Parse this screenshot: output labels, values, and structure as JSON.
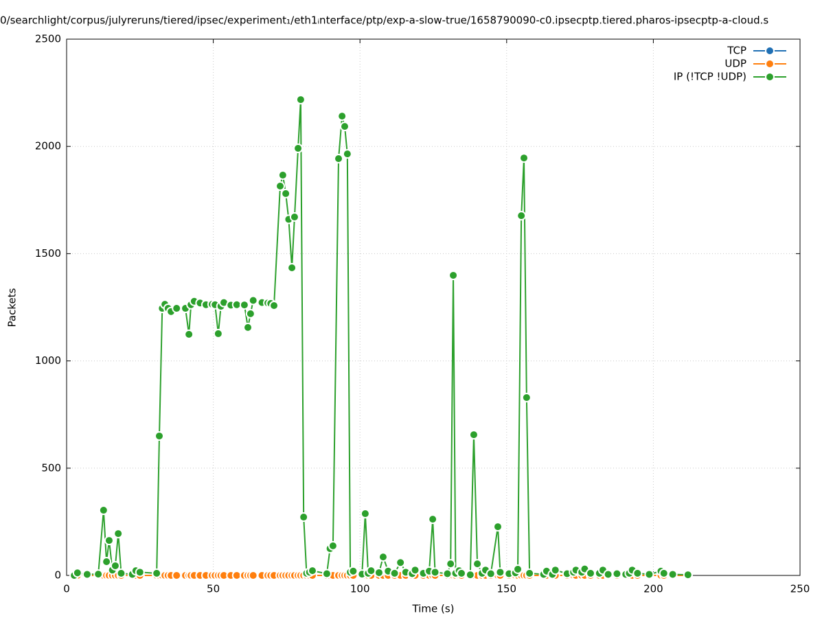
{
  "chart_data": {
    "type": "line",
    "title": "0/searchlight/corpus/julyreruns/tiered/ipsec/experiment₁/eth1ᵢnterface/ptp/exp-a-slow-true/1658790090-c0.ipsecptp.tiered.pharos-ipsecptp-a-cloud.s",
    "x_label": "Time (s)",
    "y_label": "Packets",
    "xlim": [
      0,
      250
    ],
    "xticks": [
      0,
      50,
      100,
      150,
      200,
      250
    ],
    "ylim": [
      0,
      2500
    ],
    "yticks": [
      0,
      500,
      1000,
      1500,
      2000,
      2500
    ],
    "grid": true,
    "legend": "top-right",
    "x": [
      2.6,
      3.7,
      7,
      10.8,
      12.6,
      13.6,
      14.5,
      15.6,
      16.6,
      17.6,
      18.6,
      22.4,
      23.6,
      25,
      30.7,
      31.6,
      32.6,
      33.5,
      34.6,
      35.6,
      37.5,
      40.5,
      41.7,
      42.4,
      43.5,
      45.5,
      47.5,
      49.6,
      50.6,
      51.7,
      52.6,
      53.6,
      56,
      58,
      60.6,
      61.8,
      62.7,
      63.6,
      66.6,
      68.6,
      69.6,
      70.7,
      72.8,
      73.7,
      74.7,
      75.7,
      76.8,
      77.7,
      78.9,
      79.8,
      80.8,
      81.8,
      82.8,
      83.8,
      88.7,
      89.8,
      90.8,
      92.7,
      93.9,
      94.8,
      95.7,
      96.7,
      97.7,
      100.7,
      101.8,
      102.8,
      103.8,
      106.5,
      107.9,
      109.6,
      111.8,
      113.8,
      115.6,
      117.8,
      118.8,
      121.6,
      123.6,
      124.8,
      125.6,
      129.8,
      130.9,
      131.8,
      132.6,
      133.8,
      134.6,
      137.6,
      138.8,
      140,
      141.6,
      142.8,
      144.6,
      147,
      147.8,
      150.8,
      153,
      153.8,
      155,
      155.9,
      156.8,
      157.8,
      162.6,
      163.6,
      165.6,
      166.6,
      170.6,
      172.8,
      173.6,
      175.6,
      176.6,
      178.6,
      181.6,
      182.8,
      184.6,
      187.6,
      190.6,
      191.8,
      192.8,
      194.6,
      198.6,
      202.6,
      203.6,
      206.6,
      211.8
    ],
    "series": [
      {
        "name": "TCP",
        "color": "#1f6fb4",
        "values": [
          0,
          0,
          0,
          0,
          0,
          0,
          0,
          0,
          0,
          0,
          0,
          0,
          0,
          0,
          0,
          0,
          0,
          0,
          0,
          0,
          0,
          0,
          0,
          0,
          0,
          0,
          0,
          0,
          0,
          0,
          0,
          0,
          0,
          0,
          0,
          0,
          0,
          0,
          0,
          0,
          0,
          0,
          0,
          0,
          0,
          0,
          0,
          0,
          0,
          0,
          0,
          0,
          0,
          0,
          0,
          0,
          0,
          0,
          0,
          0,
          0,
          0,
          0,
          0,
          0,
          0,
          0,
          0,
          0,
          0,
          0,
          0,
          0,
          0,
          0,
          0,
          0,
          0,
          0,
          0,
          0,
          0,
          0,
          0,
          0,
          0,
          0,
          0,
          0,
          0,
          0,
          0,
          0,
          0,
          0,
          0,
          0,
          0,
          0,
          0,
          0,
          0,
          0,
          0,
          0,
          0,
          0,
          0,
          0,
          0,
          0,
          0,
          0,
          0,
          0,
          0,
          0,
          0,
          0,
          0,
          0,
          0,
          0
        ]
      },
      {
        "name": "UDP",
        "color": "#ff7f0e",
        "values": [
          0,
          0,
          0,
          0,
          0,
          0,
          0,
          0,
          0,
          0,
          0,
          0,
          0,
          0,
          0,
          0,
          0,
          0,
          0,
          0,
          0,
          0,
          0,
          0,
          0,
          0,
          0,
          0,
          0,
          0,
          0,
          0,
          0,
          0,
          0,
          0,
          0,
          0,
          0,
          0,
          0,
          0,
          0,
          0,
          0,
          0,
          0,
          0,
          0,
          0,
          0,
          0,
          0,
          0,
          0,
          0,
          0,
          0,
          0,
          0,
          0,
          0,
          0,
          0,
          0,
          0,
          0,
          0,
          0,
          0,
          0,
          0,
          0,
          0,
          0,
          0,
          0,
          0,
          0,
          0,
          0,
          0,
          0,
          0,
          0,
          0,
          0,
          0,
          0,
          0,
          0,
          0,
          0,
          0,
          0,
          0,
          0,
          0,
          0,
          0,
          0,
          0,
          0,
          0,
          0,
          0,
          0,
          0,
          0,
          0,
          0,
          0,
          0,
          0,
          0,
          0,
          0,
          0,
          0,
          0,
          0,
          0,
          0
        ]
      },
      {
        "name": "IP (!TCP  !UDP)",
        "color": "#2ca02c",
        "values": [
          0,
          12,
          5,
          6,
          304,
          64,
          163,
          25,
          45,
          195,
          10,
          5,
          22,
          15,
          10,
          650,
          1245,
          1264,
          1245,
          1230,
          1245,
          1245,
          1124,
          1262,
          1278,
          1270,
          1262,
          1264,
          1262,
          1127,
          1255,
          1272,
          1260,
          1262,
          1261,
          1156,
          1220,
          1282,
          1272,
          1270,
          1268,
          1258,
          1815,
          1866,
          1780,
          1660,
          1434,
          1671,
          1991,
          2218,
          272,
          10,
          15,
          22,
          8,
          125,
          138,
          1943,
          2141,
          2093,
          1965,
          15,
          20,
          6,
          288,
          10,
          22,
          13,
          86,
          20,
          10,
          60,
          15,
          8,
          25,
          10,
          20,
          262,
          15,
          8,
          54,
          1399,
          10,
          22,
          10,
          3,
          656,
          54,
          10,
          25,
          8,
          227,
          15,
          8,
          12,
          29,
          1677,
          1946,
          829,
          10,
          5,
          20,
          5,
          25,
          8,
          15,
          25,
          15,
          30,
          10,
          10,
          25,
          5,
          8,
          5,
          10,
          25,
          10,
          5,
          20,
          10,
          5,
          3
        ]
      }
    ]
  }
}
